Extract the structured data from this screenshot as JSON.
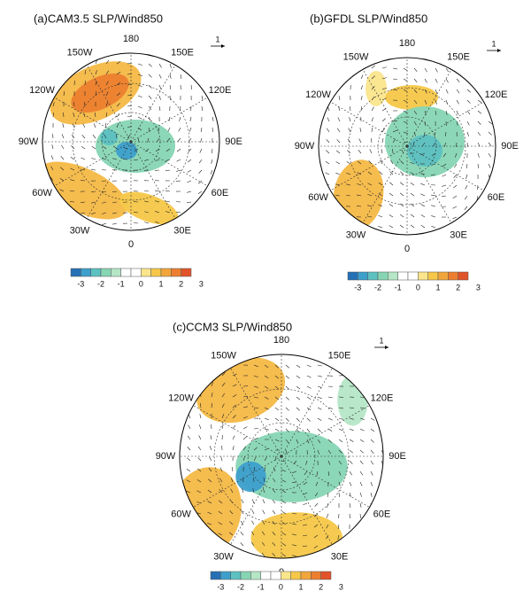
{
  "panels": [
    {
      "title": "(a)CAM3.5 SLP/Wind850",
      "reference_vector": "1",
      "longitude_labels": [
        "180",
        "150E",
        "120E",
        "90E",
        "60E",
        "30E",
        "0",
        "30W",
        "60W",
        "90W",
        "120W",
        "150W"
      ],
      "colorbar_labels": [
        "-3",
        "-2",
        "-1",
        "0",
        "1",
        "2",
        "3"
      ]
    },
    {
      "title": "(b)GFDL SLP/Wind850",
      "reference_vector": "1",
      "longitude_labels": [
        "180",
        "150E",
        "120E",
        "90E",
        "60E",
        "30E",
        "0",
        "30W",
        "60W",
        "90W",
        "120W",
        "150W"
      ],
      "colorbar_labels": [
        "-3",
        "-2",
        "-1",
        "0",
        "1",
        "2",
        "3"
      ]
    },
    {
      "title": "(c)CCM3 SLP/Wind850",
      "reference_vector": "1",
      "longitude_labels": [
        "180",
        "150E",
        "120E",
        "90E",
        "60E",
        "30E",
        "0",
        "30W",
        "60W",
        "90W",
        "120W",
        "150W"
      ],
      "colorbar_labels": [
        "-3",
        "-2",
        "-1",
        "0",
        "1",
        "2",
        "3"
      ]
    }
  ]
}
